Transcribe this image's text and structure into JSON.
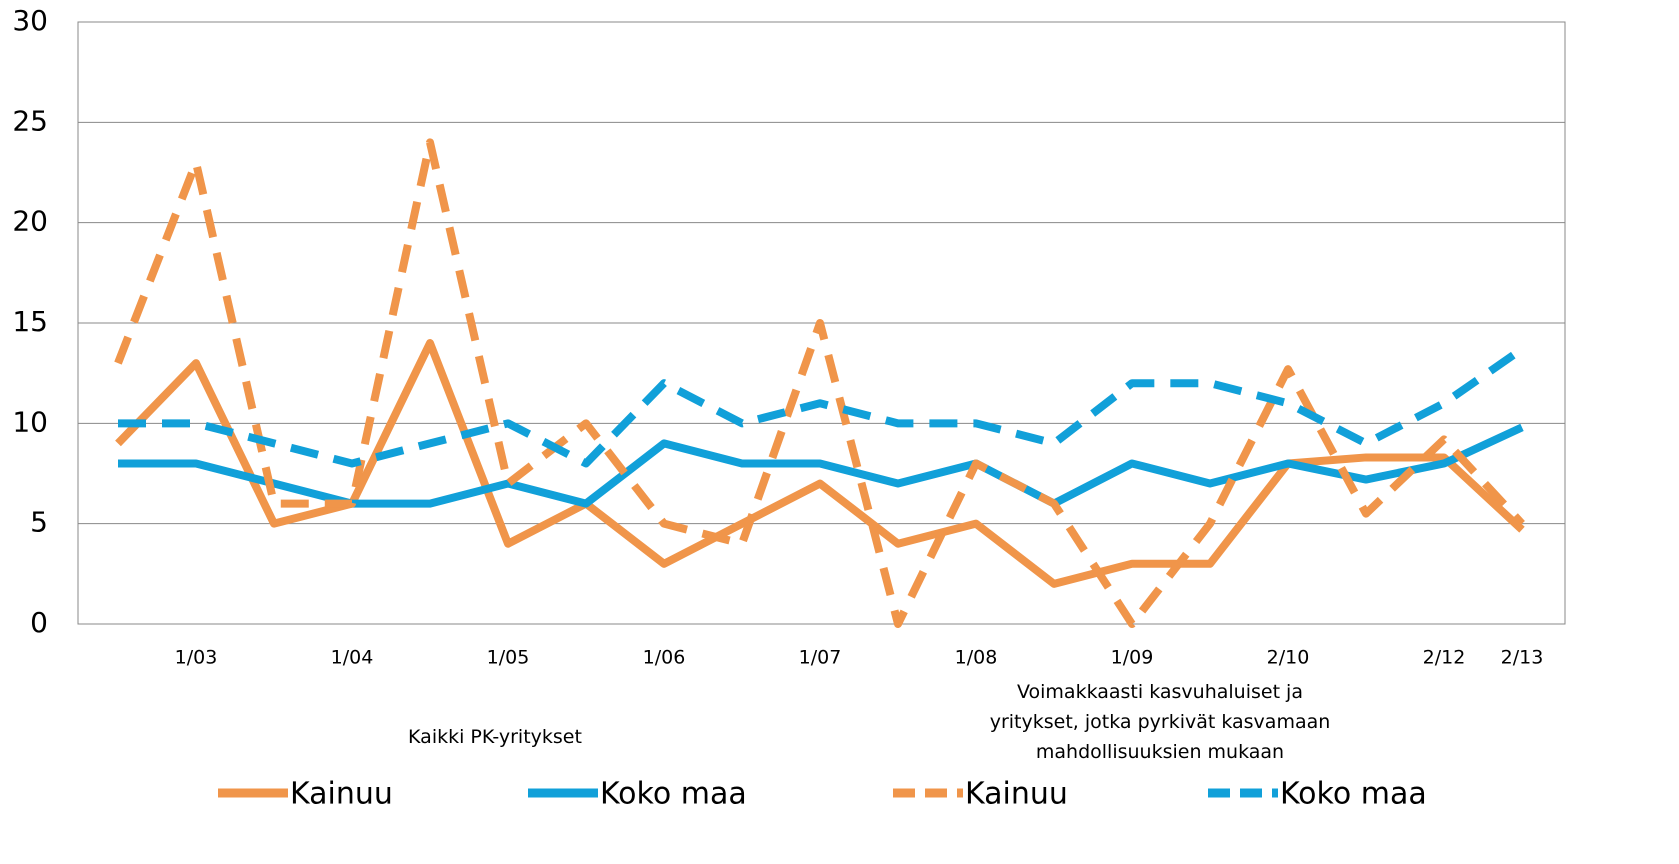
{
  "chart_data": {
    "type": "line",
    "categories": [
      null,
      "1/03",
      null,
      "1/04",
      null,
      "1/05",
      null,
      "1/06",
      null,
      "1/07",
      null,
      "1/08",
      null,
      "1/09",
      null,
      "2/10",
      null,
      "2/12",
      "2/13"
    ],
    "series": [
      {
        "name": "Kainuu",
        "color": "#f0954a",
        "dash": false,
        "values": [
          9,
          13,
          5,
          6,
          14,
          4,
          6,
          3,
          5,
          7,
          4,
          5,
          2,
          3,
          3,
          8,
          8.3,
          8.3,
          4.7
        ]
      },
      {
        "name": "Koko maa",
        "color": "#11a0d9",
        "dash": false,
        "values": [
          8,
          8,
          7,
          6,
          6,
          7,
          6,
          9,
          8,
          8,
          7,
          8,
          6,
          8,
          7,
          8,
          7.2,
          8,
          9.8
        ]
      },
      {
        "name": "Kainuu",
        "color": "#f0954a",
        "dash": true,
        "values": [
          13,
          23,
          6,
          6,
          24,
          7,
          10,
          5,
          4,
          15,
          0,
          8,
          6,
          0,
          5,
          12.7,
          5.5,
          9.2,
          5
        ]
      },
      {
        "name": "Koko maa",
        "color": "#11a0d9",
        "dash": true,
        "values": [
          10,
          10,
          9,
          8,
          9,
          10,
          8,
          12,
          10,
          11,
          10,
          10,
          9,
          12,
          12,
          11,
          9,
          11,
          13.7
        ]
      }
    ],
    "annotations": [
      {
        "lines": [
          "Kaikki PK-yritykset"
        ]
      },
      {
        "lines": [
          "Voimakkaasti kasvuhaluiset ja",
          "yritykset, jotka pyrkivät kasvamaan",
          "mahdollisuuksien mukaan"
        ]
      }
    ],
    "ylim": [
      0,
      30
    ],
    "yticks": [
      0,
      5,
      10,
      15,
      20,
      25,
      30
    ],
    "grid": true
  }
}
